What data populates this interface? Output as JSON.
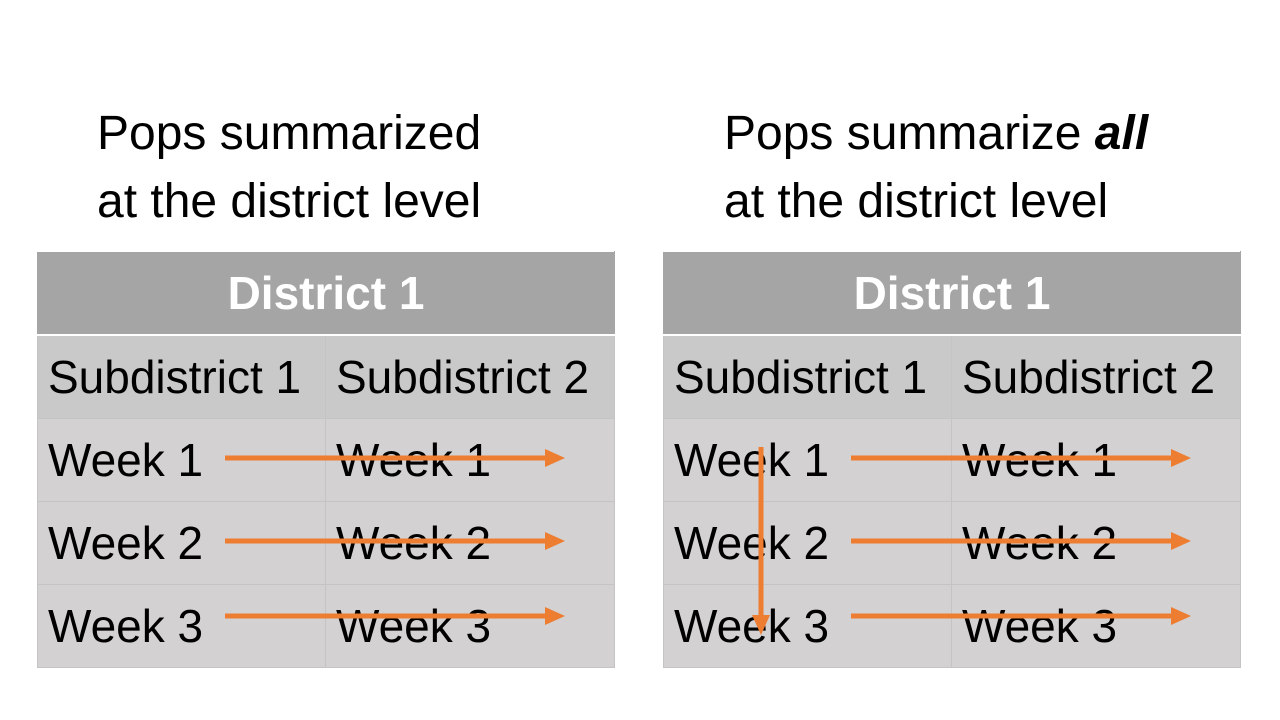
{
  "left": {
    "caption_line1": "Pops summarized",
    "caption_line2": "at the district level",
    "table": {
      "header": "District 1",
      "columns": [
        "Subdistrict 1",
        "Subdistrict 2"
      ],
      "rows": [
        [
          "Week 1",
          "Week 1"
        ],
        [
          "Week 2",
          "Week 2"
        ],
        [
          "Week 3",
          "Week 3"
        ]
      ]
    }
  },
  "right": {
    "caption_line1_prefix": "Pops summarize ",
    "caption_line1_emphasis": "all",
    "caption_line2": "at the district level",
    "table": {
      "header": "District 1",
      "columns": [
        "Subdistrict 1",
        "Subdistrict 2"
      ],
      "rows": [
        [
          "Week 1",
          "Week 1"
        ],
        [
          "Week 2",
          "Week 2"
        ],
        [
          "Week 3",
          "Week 3"
        ]
      ]
    }
  },
  "colors": {
    "arrow": "#ed7d31",
    "header_bg": "#a5a5a5",
    "subheader_bg": "#c9c9c9",
    "cell_bg": "#d3d1d2"
  }
}
